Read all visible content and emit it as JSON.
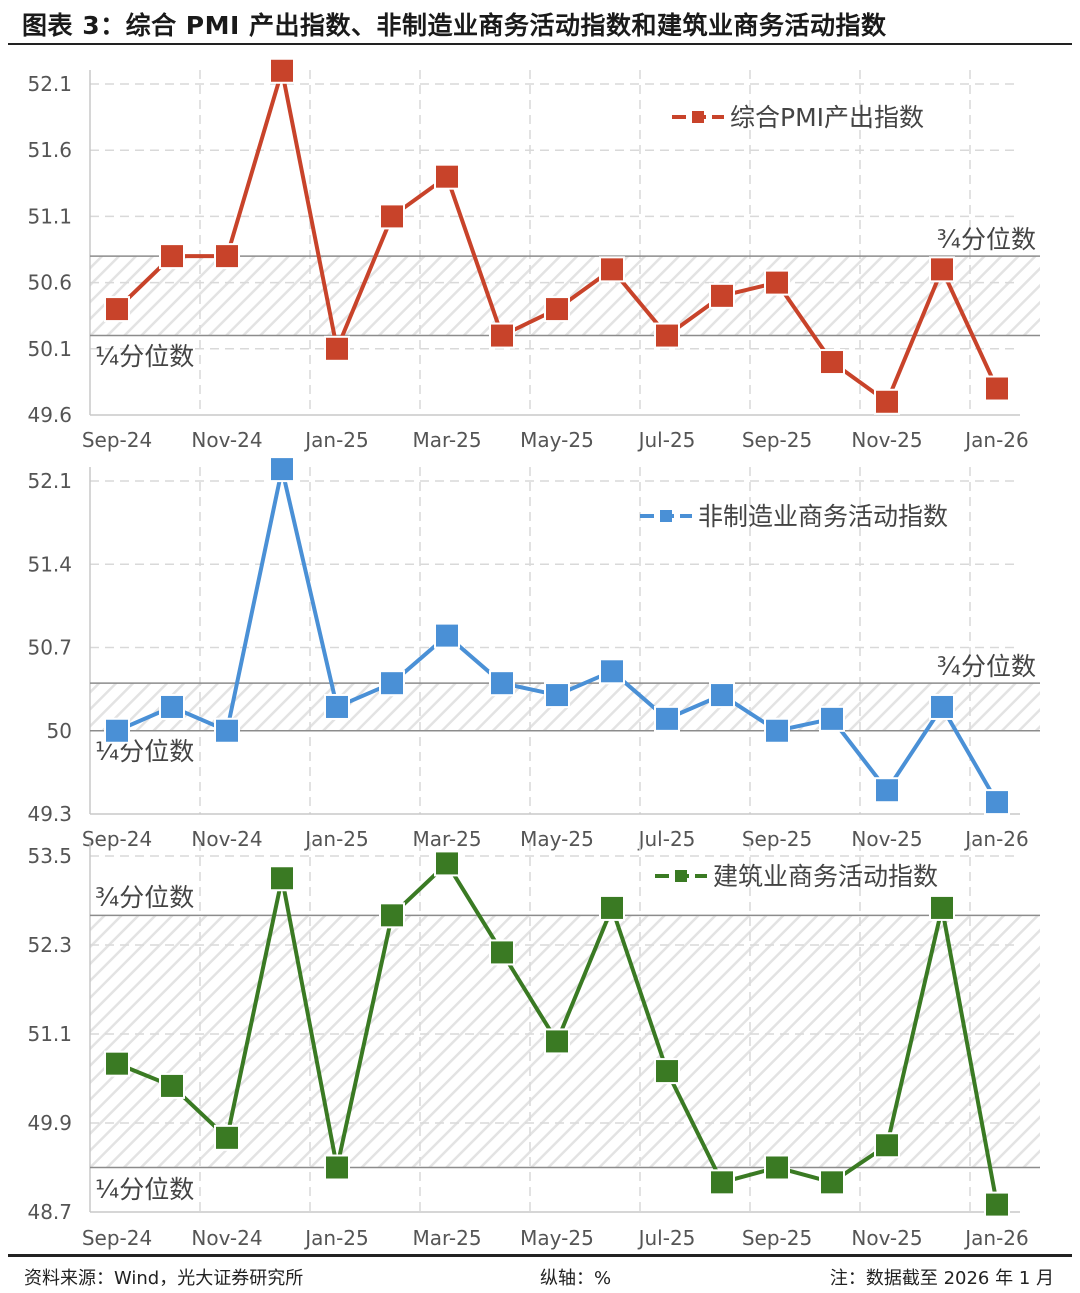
{
  "header": {
    "title": "图表 3：综合 PMI 产出指数、非制造业商务活动指数和建筑业商务活动指数"
  },
  "footer": {
    "source": "资料来源：Wind，光大证券研究所",
    "axis_unit": "纵轴：%",
    "note": "注：数据截至 2026 年 1 月"
  },
  "colors": {
    "composite": "#C8432A",
    "non_manufacturing": "#4A90D6",
    "construction": "#3A7A23",
    "grid": "#d9d9d9",
    "quartile_line": "#8c8c8c",
    "band_hatch": "#e6e6e6"
  },
  "chart_data": [
    {
      "type": "line",
      "title": "综合PMI产出指数",
      "xlabel": "",
      "ylabel": "%",
      "categories": [
        "Sep-24",
        "Oct-24",
        "Nov-24",
        "Dec-24",
        "Jan-25",
        "Feb-25",
        "Mar-25",
        "Apr-25",
        "May-25",
        "Jun-25",
        "Jul-25",
        "Aug-25",
        "Sep-25",
        "Oct-25",
        "Nov-25",
        "Dec-25",
        "Jan-26"
      ],
      "x_tick_labels": [
        "Sep-24",
        "Nov-24",
        "Jan-25",
        "Mar-25",
        "May-25",
        "Jul-25",
        "Sep-25",
        "Nov-25",
        "Jan-26"
      ],
      "series": [
        {
          "name": "综合PMI产出指数",
          "values": [
            50.4,
            50.8,
            50.8,
            52.2,
            50.1,
            51.1,
            51.4,
            50.2,
            50.4,
            50.7,
            50.2,
            50.5,
            50.6,
            50.0,
            49.7,
            50.7,
            49.8
          ]
        }
      ],
      "ylim": [
        49.6,
        52.1
      ],
      "y_ticks": [
        "52.1",
        "51.6",
        "51.1",
        "50.6",
        "50.1",
        "49.6"
      ],
      "quartiles": {
        "upper": 50.8,
        "lower": 50.2,
        "upper_label": "¾分位数",
        "lower_label": "¼分位数"
      },
      "grid": true,
      "legend_position": "top-right"
    },
    {
      "type": "line",
      "title": "非制造业商务活动指数",
      "xlabel": "",
      "ylabel": "%",
      "categories": [
        "Sep-24",
        "Oct-24",
        "Nov-24",
        "Dec-24",
        "Jan-25",
        "Feb-25",
        "Mar-25",
        "Apr-25",
        "May-25",
        "Jun-25",
        "Jul-25",
        "Aug-25",
        "Sep-25",
        "Oct-25",
        "Nov-25",
        "Dec-25",
        "Jan-26"
      ],
      "x_tick_labels": [
        "Sep-24",
        "Nov-24",
        "Jan-25",
        "Mar-25",
        "May-25",
        "Jul-25",
        "Sep-25",
        "Nov-25",
        "Jan-26"
      ],
      "series": [
        {
          "name": "非制造业商务活动指数",
          "values": [
            50.0,
            50.2,
            50.0,
            52.2,
            50.2,
            50.4,
            50.8,
            50.4,
            50.3,
            50.5,
            50.1,
            50.3,
            50.0,
            50.1,
            49.5,
            50.2,
            49.4
          ]
        }
      ],
      "ylim": [
        49.3,
        52.1
      ],
      "y_ticks": [
        "52.1",
        "51.4",
        "50.7",
        "50",
        "49.3"
      ],
      "quartiles": {
        "upper": 50.4,
        "lower": 50.0,
        "upper_label": "¾分位数",
        "lower_label": "¼分位数"
      },
      "grid": true,
      "legend_position": "top-right"
    },
    {
      "type": "line",
      "title": "建筑业商务活动指数",
      "xlabel": "",
      "ylabel": "%",
      "categories": [
        "Sep-24",
        "Oct-24",
        "Nov-24",
        "Dec-24",
        "Jan-25",
        "Feb-25",
        "Mar-25",
        "Apr-25",
        "May-25",
        "Jun-25",
        "Jul-25",
        "Aug-25",
        "Sep-25",
        "Oct-25",
        "Nov-25",
        "Dec-25",
        "Jan-26"
      ],
      "x_tick_labels": [
        "Sep-24",
        "Nov-24",
        "Jan-25",
        "Mar-25",
        "May-25",
        "Jul-25",
        "Sep-25",
        "Nov-25",
        "Jan-26"
      ],
      "series": [
        {
          "name": "建筑业商务活动指数",
          "values": [
            50.7,
            50.4,
            49.7,
            53.2,
            49.3,
            52.7,
            53.4,
            52.2,
            51.0,
            52.8,
            50.6,
            49.1,
            49.3,
            49.1,
            49.6,
            52.8,
            48.8
          ]
        }
      ],
      "ylim": [
        48.7,
        53.5
      ],
      "y_ticks": [
        "53.5",
        "52.3",
        "51.1",
        "49.9",
        "48.7"
      ],
      "quartiles": {
        "upper": 52.7,
        "lower": 49.3,
        "upper_label": "¾分位数",
        "lower_label": "¼分位数"
      },
      "grid": true,
      "legend_position": "top-right"
    }
  ]
}
